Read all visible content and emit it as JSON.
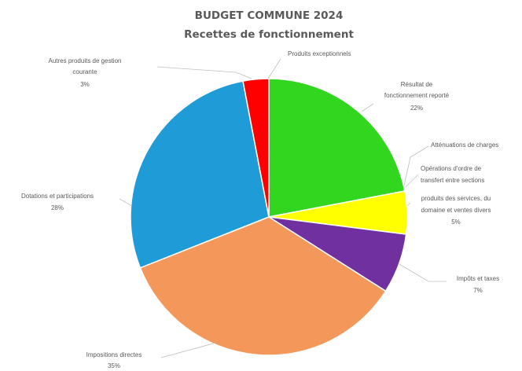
{
  "chart_data": {
    "type": "pie",
    "title": "BUDGET COMMUNE 2024",
    "subtitle": "Recettes de fonctionnement",
    "slices": [
      {
        "label": "Résultat de fonctionnement reporté",
        "value": 22,
        "value_label": "22%",
        "color": "#33d61f"
      },
      {
        "label": "Atténuations de charges",
        "value": 0,
        "value_label": "",
        "color": "#33d61f"
      },
      {
        "label": "Opérations d'ordre de transfert entre sections",
        "value": 0,
        "value_label": "",
        "color": "#33d61f"
      },
      {
        "label": "produits des services, du domaine et ventes divers",
        "value": 5,
        "value_label": "5%",
        "color": "#ffff00"
      },
      {
        "label": "Impôts et taxes",
        "value": 7,
        "value_label": "7%",
        "color": "#7030a0"
      },
      {
        "label": "Impositions directes",
        "value": 35,
        "value_label": "35%",
        "color": "#f4975a"
      },
      {
        "label": "Dotations et participations",
        "value": 28,
        "value_label": "28%",
        "color": "#1f9bd7"
      },
      {
        "label": "Autres produits de gestion courante",
        "value": 3,
        "value_label": "3%",
        "color": "#ff0000"
      },
      {
        "label": "Produits exceptionnels",
        "value": 0,
        "value_label": "",
        "color": "#ff0000"
      }
    ],
    "legend": "none"
  },
  "labels": {
    "resultat": [
      "Résultat de",
      "fonctionnement reporté",
      "22%"
    ],
    "attenuations": [
      "Atténuations de charges"
    ],
    "operations": [
      "Opérations d'ordre de",
      "transfert entre sections"
    ],
    "produits_services": [
      "produits des services, du",
      "domaine et ventes divers",
      "5%"
    ],
    "impots_taxes": [
      "Impôts et taxes",
      "7%"
    ],
    "impositions": [
      "Impositions directes",
      "35%"
    ],
    "dotations": [
      "Dotations et participations",
      "28%"
    ],
    "autres": [
      "Autres produits de gestion",
      "courante",
      "3%"
    ],
    "exceptionnels": [
      "Produits exceptionnels"
    ]
  }
}
